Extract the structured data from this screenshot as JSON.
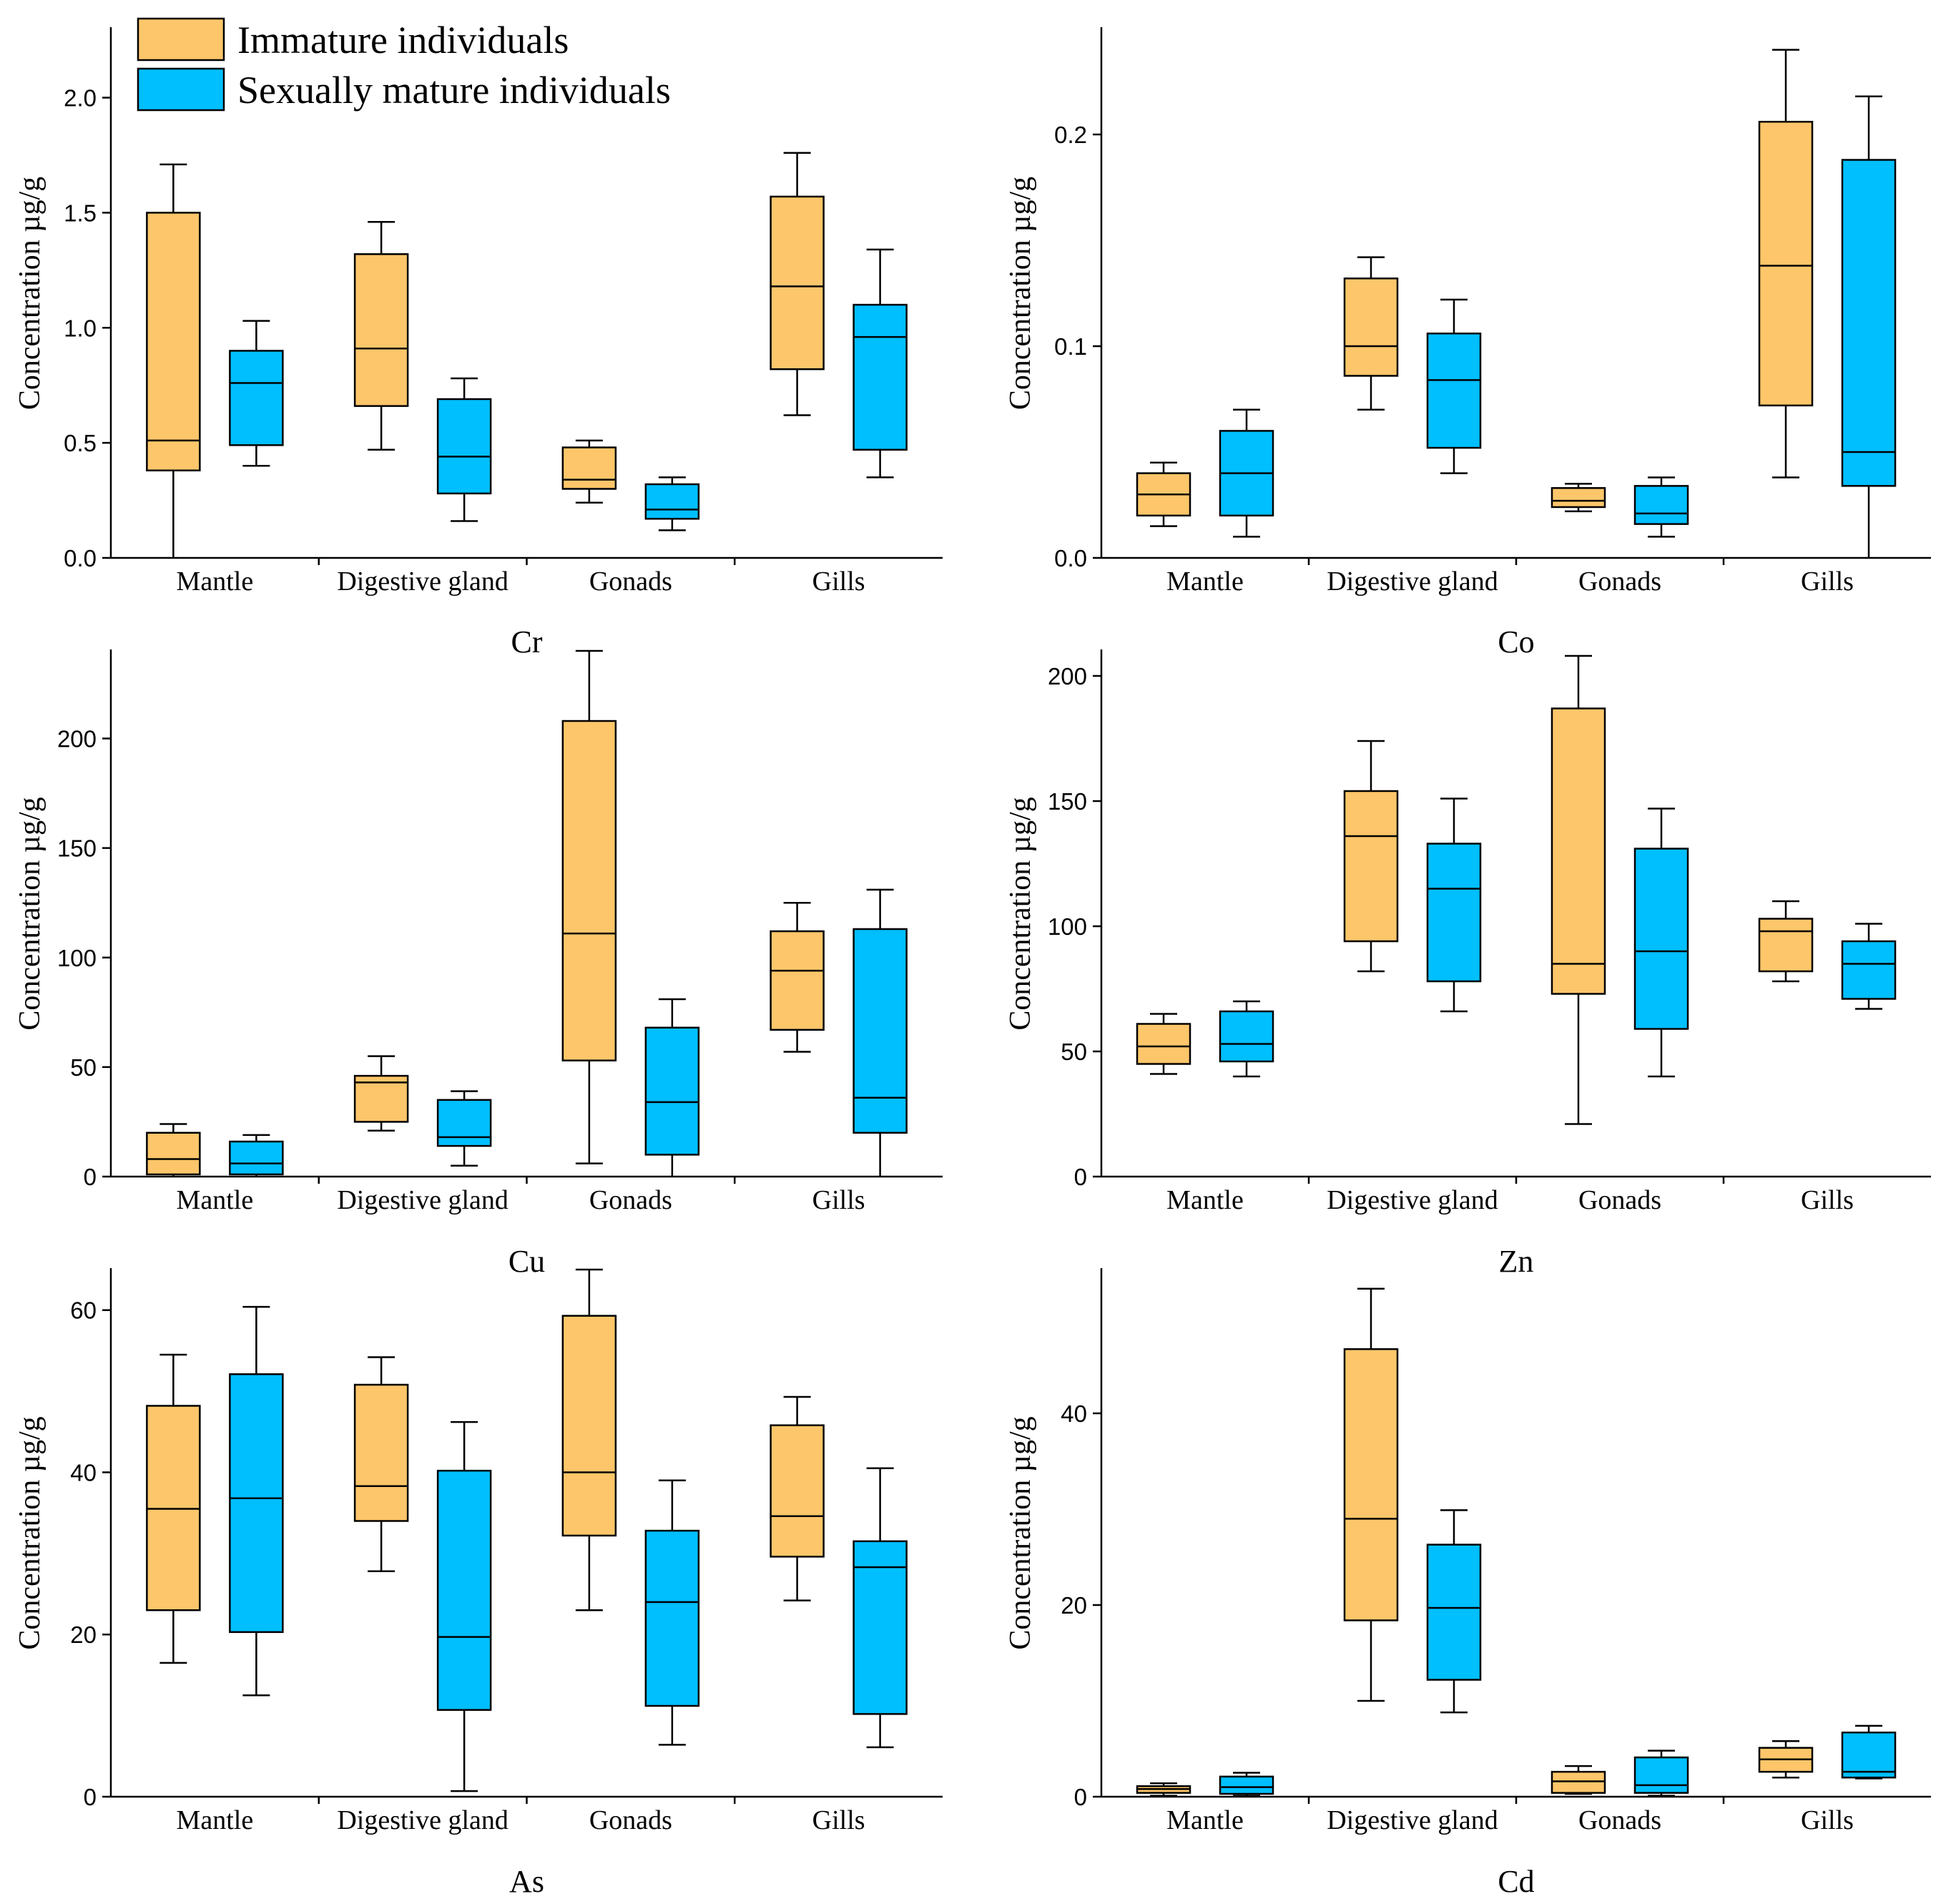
{
  "colors": {
    "immature": "#FDC66A",
    "mature": "#00BFFF",
    "stroke": "#000000"
  },
  "chart_data": [
    {
      "type": "box",
      "element": "Cr",
      "title": "Cr",
      "ylabel": "Concentration µg/g",
      "categories": [
        "Mantle",
        "Digestive gland",
        "Gonads",
        "Gills"
      ],
      "yticks": [
        0.0,
        0.5,
        1.0,
        1.5,
        2.0
      ],
      "ytick_labels": [
        "0.0",
        "0.5",
        "1.0",
        "1.5",
        "2.0"
      ],
      "ylim": [
        0,
        2.3
      ],
      "series": [
        {
          "name": "Immature individuals",
          "boxes": [
            {
              "min": 0.0,
              "q1": 0.38,
              "median": 0.51,
              "q3": 1.5,
              "max": 1.71
            },
            {
              "min": 0.47,
              "q1": 0.66,
              "median": 0.91,
              "q3": 1.32,
              "max": 1.46
            },
            {
              "min": 0.24,
              "q1": 0.3,
              "median": 0.34,
              "q3": 0.48,
              "max": 0.51
            },
            {
              "min": 0.62,
              "q1": 0.82,
              "median": 1.18,
              "q3": 1.57,
              "max": 1.76
            }
          ]
        },
        {
          "name": "Sexually mature individuals",
          "boxes": [
            {
              "min": 0.4,
              "q1": 0.49,
              "median": 0.76,
              "q3": 0.9,
              "max": 1.03
            },
            {
              "min": 0.16,
              "q1": 0.28,
              "median": 0.44,
              "q3": 0.69,
              "max": 0.78
            },
            {
              "min": 0.12,
              "q1": 0.17,
              "median": 0.21,
              "q3": 0.32,
              "max": 0.35
            },
            {
              "min": 0.35,
              "q1": 0.47,
              "median": 0.96,
              "q3": 1.1,
              "max": 1.34
            }
          ]
        }
      ]
    },
    {
      "type": "box",
      "element": "Co",
      "title": "Co",
      "ylabel": "Concentration µg/g",
      "categories": [
        "Mantle",
        "Digestive gland",
        "Gonads",
        "Gills"
      ],
      "yticks": [
        0.0,
        0.1,
        0.2
      ],
      "ytick_labels": [
        "0.0",
        "0.1",
        "0.2"
      ],
      "ylim": [
        0,
        0.25
      ],
      "series": [
        {
          "name": "Immature individuals",
          "boxes": [
            {
              "min": 0.015,
              "q1": 0.02,
              "median": 0.03,
              "q3": 0.04,
              "max": 0.045
            },
            {
              "min": 0.07,
              "q1": 0.086,
              "median": 0.1,
              "q3": 0.132,
              "max": 0.142
            },
            {
              "min": 0.022,
              "q1": 0.024,
              "median": 0.027,
              "q3": 0.033,
              "max": 0.035
            },
            {
              "min": 0.038,
              "q1": 0.072,
              "median": 0.138,
              "q3": 0.206,
              "max": 0.24
            }
          ]
        },
        {
          "name": "Sexually mature individuals",
          "boxes": [
            {
              "min": 0.01,
              "q1": 0.02,
              "median": 0.04,
              "q3": 0.06,
              "max": 0.07
            },
            {
              "min": 0.04,
              "q1": 0.052,
              "median": 0.084,
              "q3": 0.106,
              "max": 0.122
            },
            {
              "min": 0.01,
              "q1": 0.016,
              "median": 0.021,
              "q3": 0.034,
              "max": 0.038
            },
            {
              "min": 0.0,
              "q1": 0.034,
              "median": 0.05,
              "q3": 0.188,
              "max": 0.218
            }
          ]
        }
      ]
    },
    {
      "type": "box",
      "element": "Cu",
      "title": "Cu",
      "ylabel": "Concentration µg/g",
      "categories": [
        "Mantle",
        "Digestive gland",
        "Gonads",
        "Gills"
      ],
      "yticks": [
        0,
        50,
        100,
        150,
        200
      ],
      "ytick_labels": [
        "0",
        "50",
        "100",
        "150",
        "200"
      ],
      "ylim": [
        0,
        240
      ],
      "series": [
        {
          "name": "Immature individuals",
          "boxes": [
            {
              "min": 0,
              "q1": 1,
              "median": 8,
              "q3": 20,
              "max": 24
            },
            {
              "min": 21,
              "q1": 25,
              "median": 43,
              "q3": 46,
              "max": 55
            },
            {
              "min": 6,
              "q1": 53,
              "median": 111,
              "q3": 208,
              "max": 240
            },
            {
              "min": 57,
              "q1": 67,
              "median": 94,
              "q3": 112,
              "max": 125
            }
          ]
        },
        {
          "name": "Sexually mature individuals",
          "boxes": [
            {
              "min": 0,
              "q1": 1,
              "median": 6,
              "q3": 16,
              "max": 19
            },
            {
              "min": 5,
              "q1": 14,
              "median": 18,
              "q3": 35,
              "max": 39
            },
            {
              "min": 0,
              "q1": 10,
              "median": 34,
              "q3": 68,
              "max": 81
            },
            {
              "min": 0,
              "q1": 20,
              "median": 36,
              "q3": 113,
              "max": 131
            }
          ]
        }
      ]
    },
    {
      "type": "box",
      "element": "Zn",
      "title": "Zn",
      "ylabel": "Concentration µg/g",
      "categories": [
        "Mantle",
        "Digestive gland",
        "Gonads",
        "Gills"
      ],
      "yticks": [
        0,
        50,
        100,
        150,
        200
      ],
      "ytick_labels": [
        "0",
        "50",
        "100",
        "150",
        "200"
      ],
      "ylim": [
        0,
        210
      ],
      "series": [
        {
          "name": "Immature individuals",
          "boxes": [
            {
              "min": 41,
              "q1": 45,
              "median": 52,
              "q3": 61,
              "max": 65
            },
            {
              "min": 82,
              "q1": 94,
              "median": 136,
              "q3": 154,
              "max": 174
            },
            {
              "min": 21,
              "q1": 73,
              "median": 85,
              "q3": 187,
              "max": 208
            },
            {
              "min": 78,
              "q1": 82,
              "median": 98,
              "q3": 103,
              "max": 110
            }
          ]
        },
        {
          "name": "Sexually mature individuals",
          "boxes": [
            {
              "min": 40,
              "q1": 46,
              "median": 53,
              "q3": 66,
              "max": 70
            },
            {
              "min": 66,
              "q1": 78,
              "median": 115,
              "q3": 133,
              "max": 151
            },
            {
              "min": 40,
              "q1": 59,
              "median": 90,
              "q3": 131,
              "max": 147
            },
            {
              "min": 67,
              "q1": 71,
              "median": 85,
              "q3": 94,
              "max": 101
            }
          ]
        }
      ]
    },
    {
      "type": "box",
      "element": "As",
      "title": "As",
      "ylabel": "Concentration µg/g",
      "categories": [
        "Mantle",
        "Digestive gland",
        "Gonads",
        "Gills"
      ],
      "yticks": [
        0,
        20,
        40,
        60
      ],
      "ytick_labels": [
        "0",
        "20",
        "40",
        "60"
      ],
      "ylim": [
        0,
        65
      ],
      "series": [
        {
          "name": "Immature individuals",
          "boxes": [
            {
              "min": 16.5,
              "q1": 23,
              "median": 35.5,
              "q3": 48.2,
              "max": 54.5
            },
            {
              "min": 27.8,
              "q1": 34,
              "median": 38.3,
              "q3": 50.8,
              "max": 54.2
            },
            {
              "min": 23,
              "q1": 32.2,
              "median": 40,
              "q3": 59.3,
              "max": 65
            },
            {
              "min": 24.2,
              "q1": 29.6,
              "median": 34.6,
              "q3": 45.8,
              "max": 49.3
            }
          ]
        },
        {
          "name": "Sexually mature individuals",
          "boxes": [
            {
              "min": 12.5,
              "q1": 20.3,
              "median": 36.8,
              "q3": 52.1,
              "max": 60.4
            },
            {
              "min": 0.7,
              "q1": 10.7,
              "median": 19.7,
              "q3": 40.2,
              "max": 46.2
            },
            {
              "min": 6.4,
              "q1": 11.2,
              "median": 24,
              "q3": 32.8,
              "max": 39
            },
            {
              "min": 6.1,
              "q1": 10.2,
              "median": 28.3,
              "q3": 31.5,
              "max": 40.5
            }
          ]
        }
      ]
    },
    {
      "type": "box",
      "element": "Cd",
      "title": "Cd",
      "ylabel": "Concentration µg/g",
      "categories": [
        "Mantle",
        "Digestive gland",
        "Gonads",
        "Gills"
      ],
      "yticks": [
        0,
        20,
        40
      ],
      "ytick_labels": [
        "0",
        "20",
        "40"
      ],
      "ylim": [
        0,
        55
      ],
      "series": [
        {
          "name": "Immature individuals",
          "boxes": [
            {
              "min": 0.1,
              "q1": 0.4,
              "median": 0.8,
              "q3": 1.1,
              "max": 1.4
            },
            {
              "min": 10,
              "q1": 18.4,
              "median": 29,
              "q3": 46.7,
              "max": 53
            },
            {
              "min": 0.3,
              "q1": 0.4,
              "median": 1.6,
              "q3": 2.6,
              "max": 3.2
            },
            {
              "min": 2,
              "q1": 2.6,
              "median": 3.9,
              "q3": 5.1,
              "max": 5.8
            }
          ]
        },
        {
          "name": "Sexually mature individuals",
          "boxes": [
            {
              "min": 0.1,
              "q1": 0.3,
              "median": 1,
              "q3": 2.1,
              "max": 2.5
            },
            {
              "min": 8.8,
              "q1": 12.2,
              "median": 19.7,
              "q3": 26.3,
              "max": 29.9
            },
            {
              "min": 0.1,
              "q1": 0.4,
              "median": 1.2,
              "q3": 4.1,
              "max": 4.8
            },
            {
              "min": 1.9,
              "q1": 2,
              "median": 2.6,
              "q3": 6.7,
              "max": 7.4
            }
          ]
        }
      ]
    }
  ],
  "legend": {
    "position": "top-left",
    "items": [
      {
        "label": "Immature individuals",
        "color": "#FDC66A"
      },
      {
        "label": "Sexually mature individuals",
        "color": "#00BFFF"
      }
    ]
  }
}
